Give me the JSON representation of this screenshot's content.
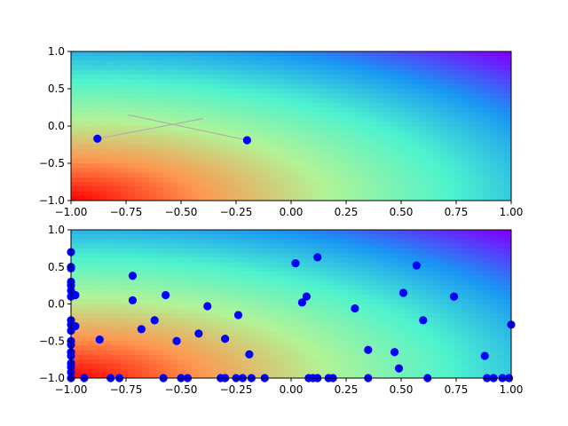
{
  "colors": {
    "colormap": [
      "#8000ff",
      "#1996f3",
      "#4df3ce",
      "#b2f396",
      "#ff964f",
      "#ff0000"
    ],
    "marker": "#0000ff",
    "path_line": "#b0b0b0",
    "axis": "#000000"
  },
  "chart_data": [
    {
      "type": "scatter",
      "background": "filled contour, rainbow colormap, high at bottom-left (-1,-1), low at top-right (1,1)",
      "xlim": [
        -1,
        1
      ],
      "ylim": [
        -1,
        1
      ],
      "xticks": [
        "−1.00",
        "−0.75",
        "−0.50",
        "−0.25",
        "0.00",
        "0.25",
        "0.50",
        "0.75",
        "1.00"
      ],
      "yticks": [
        "−1.0",
        "−0.5",
        "0.0",
        "0.5",
        "1.0"
      ],
      "grid": false,
      "series": [
        {
          "points": [
            [
              -0.88,
              -0.17
            ],
            [
              -0.2,
              -0.19
            ]
          ]
        }
      ],
      "paths": [
        [
          [
            -0.88,
            -0.17
          ],
          [
            -0.4,
            0.1
          ]
        ],
        [
          [
            -0.74,
            0.15
          ],
          [
            -0.2,
            -0.19
          ]
        ]
      ]
    },
    {
      "type": "scatter",
      "background": "filled contour, rainbow colormap, high at bottom-left (-1,-1), low at top-right (1,1)",
      "xlim": [
        -1,
        1
      ],
      "ylim": [
        -1,
        1
      ],
      "xticks": [
        "−1.00",
        "−0.75",
        "−0.50",
        "−0.25",
        "0.00",
        "0.25",
        "0.50",
        "0.75",
        "1.00"
      ],
      "yticks": [
        "−1.0",
        "−0.5",
        "0.0",
        "0.5",
        "1.0"
      ],
      "grid": false,
      "series": [
        {
          "points": [
            [
              -1.0,
              0.7
            ],
            [
              -1.0,
              0.5
            ],
            [
              -1.0,
              0.48
            ],
            [
              -1.0,
              0.3
            ],
            [
              -1.0,
              0.25
            ],
            [
              -1.0,
              0.18
            ],
            [
              -1.0,
              0.1
            ],
            [
              -1.0,
              -0.22
            ],
            [
              -1.0,
              -0.28
            ],
            [
              -1.0,
              -0.36
            ],
            [
              -1.0,
              -0.5
            ],
            [
              -1.0,
              -0.55
            ],
            [
              -1.0,
              -0.65
            ],
            [
              -1.0,
              -0.7
            ],
            [
              -1.0,
              -0.8
            ],
            [
              -1.0,
              -0.85
            ],
            [
              -1.0,
              -0.92
            ],
            [
              -1.0,
              -1.0
            ],
            [
              -0.98,
              0.12
            ],
            [
              -0.98,
              -0.3
            ],
            [
              -0.94,
              -1.0
            ],
            [
              -0.87,
              -0.48
            ],
            [
              -0.82,
              -1.0
            ],
            [
              -0.78,
              -1.0
            ],
            [
              -0.72,
              0.38
            ],
            [
              -0.72,
              0.05
            ],
            [
              -0.68,
              -0.34
            ],
            [
              -0.62,
              -0.22
            ],
            [
              -0.58,
              -1.0
            ],
            [
              -0.57,
              0.12
            ],
            [
              -0.52,
              -0.5
            ],
            [
              -0.5,
              -1.0
            ],
            [
              -0.47,
              -1.0
            ],
            [
              -0.42,
              -0.4
            ],
            [
              -0.38,
              -0.03
            ],
            [
              -0.32,
              -1.0
            ],
            [
              -0.3,
              -1.0
            ],
            [
              -0.3,
              -0.47
            ],
            [
              -0.24,
              -0.15
            ],
            [
              -0.25,
              -1.0
            ],
            [
              -0.22,
              -1.0
            ],
            [
              -0.19,
              -0.68
            ],
            [
              -0.18,
              -1.0
            ],
            [
              -0.12,
              -1.0
            ],
            [
              0.02,
              0.55
            ],
            [
              0.05,
              0.02
            ],
            [
              0.07,
              0.1
            ],
            [
              0.08,
              -1.0
            ],
            [
              0.1,
              -1.0
            ],
            [
              0.12,
              0.63
            ],
            [
              0.12,
              -1.0
            ],
            [
              0.17,
              -1.0
            ],
            [
              0.19,
              -1.0
            ],
            [
              0.29,
              -0.06
            ],
            [
              0.35,
              -0.62
            ],
            [
              0.35,
              -1.0
            ],
            [
              0.47,
              -0.65
            ],
            [
              0.49,
              -0.87
            ],
            [
              0.51,
              0.15
            ],
            [
              0.57,
              0.52
            ],
            [
              0.6,
              -0.22
            ],
            [
              0.62,
              -1.0
            ],
            [
              0.74,
              0.1
            ],
            [
              0.88,
              -0.7
            ],
            [
              0.89,
              -1.0
            ],
            [
              0.92,
              -1.0
            ],
            [
              0.96,
              -1.0
            ],
            [
              0.99,
              -1.0
            ],
            [
              1.0,
              -0.28
            ]
          ]
        }
      ]
    }
  ]
}
